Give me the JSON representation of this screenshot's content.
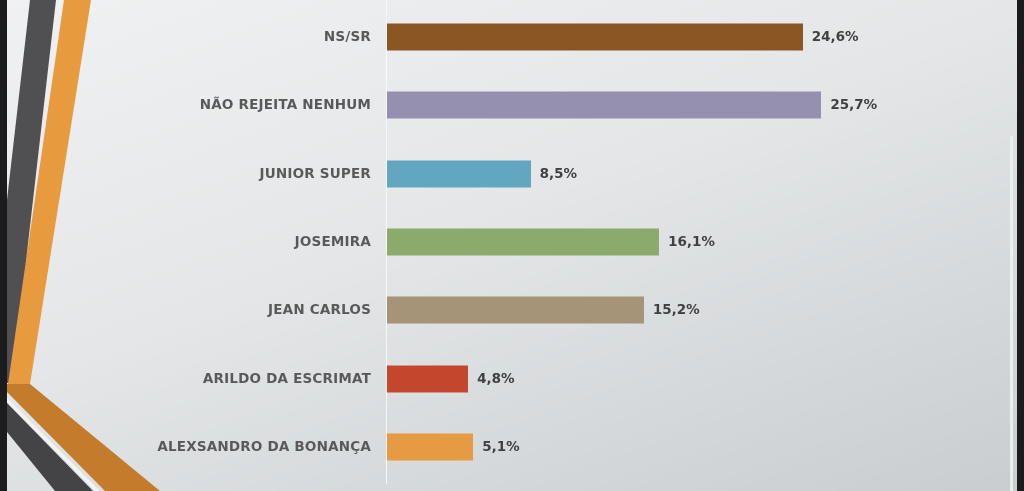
{
  "chart_data": {
    "type": "bar",
    "orientation": "horizontal",
    "categories": [
      "NS/SR",
      "NÃO REJEITA NENHUM",
      "JUNIOR SUPER",
      "JOSEMIRA",
      "JEAN CARLOS",
      "ARILDO DA ESCRIMAT",
      "ALEXSANDRO DA BONANÇA"
    ],
    "values": [
      24.6,
      25.7,
      8.5,
      16.1,
      15.2,
      4.8,
      5.1
    ],
    "data_labels": [
      "24,6%",
      "25,7%",
      "8,5%",
      "16,1%",
      "15,2%",
      "4,8%",
      "5,1%"
    ],
    "colors": [
      "#8b5623",
      "#9690b0",
      "#63a6c0",
      "#8aab6c",
      "#a59478",
      "#c4462c",
      "#e59a43"
    ],
    "unit": "%",
    "xlim": [
      0,
      37
    ],
    "grid": false,
    "legend": "none"
  },
  "decoration_colors": {
    "orange": "#e89a3f",
    "dark_orange": "#c47c2c",
    "gray": "#4a4a4c",
    "edge": "#1c1c1e"
  }
}
